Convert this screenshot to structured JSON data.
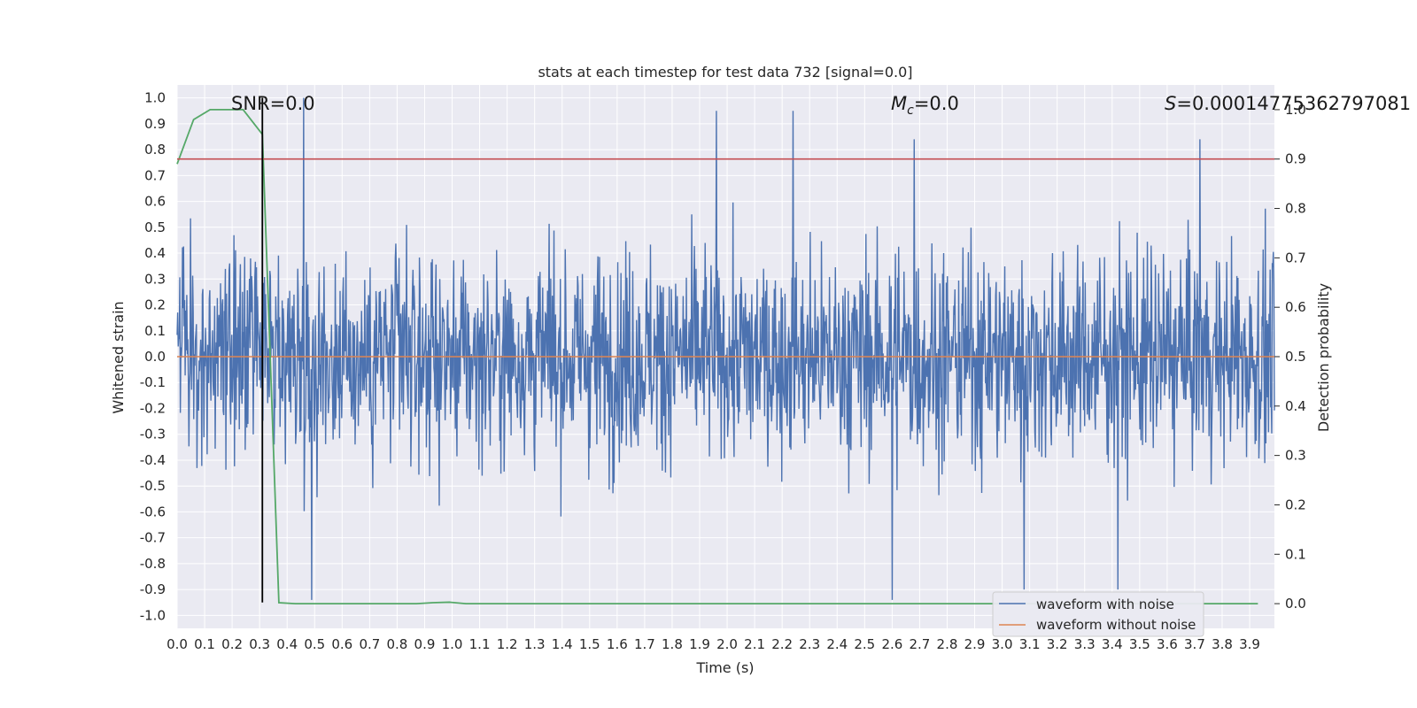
{
  "chart_data": {
    "type": "line",
    "title": "stats at each timestep for test data 732 [signal=0.0]",
    "xlabel": "Time (s)",
    "ylabel": "Whitened strain",
    "y2label": "Detection probability",
    "xlim": [
      0.0,
      3.99
    ],
    "ylim": [
      -1.05,
      1.05
    ],
    "y2lim": [
      -0.05,
      1.05
    ],
    "xticks": [
      "0.0",
      "0.1",
      "0.2",
      "0.3",
      "0.4",
      "0.5",
      "0.6",
      "0.7",
      "0.8",
      "0.9",
      "1.0",
      "1.1",
      "1.2",
      "1.3",
      "1.4",
      "1.5",
      "1.6",
      "1.7",
      "1.8",
      "1.9",
      "2.0",
      "2.1",
      "2.2",
      "2.3",
      "2.4",
      "2.5",
      "2.6",
      "2.7",
      "2.8",
      "2.9",
      "3.0",
      "3.1",
      "3.2",
      "3.3",
      "3.4",
      "3.5",
      "3.6",
      "3.7",
      "3.8",
      "3.9"
    ],
    "yticks": [
      "1.0",
      "0.9",
      "0.8",
      "0.7",
      "0.6",
      "0.5",
      "0.4",
      "0.3",
      "0.2",
      "0.1",
      "0.0",
      "-0.1",
      "-0.2",
      "-0.3",
      "-0.4",
      "-0.5",
      "-0.6",
      "-0.7",
      "-0.8",
      "-0.9",
      "-1.0"
    ],
    "y2ticks": [
      "1.0",
      "0.9",
      "0.8",
      "0.7",
      "0.6",
      "0.5",
      "0.4",
      "0.3",
      "0.2",
      "0.1",
      "0.0"
    ],
    "grid": true,
    "legend_position": "bottom-right",
    "annotations": {
      "snr": "SNR=0.0",
      "mc_symbol": "M",
      "mc_sub": "c",
      "mc_value": "=0.0",
      "s_symbol": "S",
      "s_value": "=0.00014775362797081"
    },
    "threshold_probability": 0.9,
    "marker_time": 0.31,
    "series": [
      {
        "name": "waveform with noise",
        "axis": "left",
        "color": "#4c72b0",
        "x_start": 0.0,
        "x_end": 3.99,
        "samples": 2048,
        "amplitude_envelope": [
          -1.0,
          1.0
        ],
        "mean": 0.0,
        "note_peaks": [
          [
            0.46,
            1.0
          ],
          [
            0.49,
            -0.94
          ],
          [
            1.96,
            0.95
          ],
          [
            2.24,
            0.95
          ],
          [
            2.6,
            -0.94
          ],
          [
            2.68,
            0.84
          ],
          [
            3.72,
            0.84
          ],
          [
            3.08,
            -0.9
          ],
          [
            3.42,
            -0.9
          ]
        ]
      },
      {
        "name": "waveform without noise",
        "axis": "left",
        "color": "#dd8452",
        "x": [
          0.0,
          3.99
        ],
        "y": [
          0.0,
          0.0
        ]
      },
      {
        "name": "detection probability",
        "axis": "right",
        "color": "#55a868",
        "x": [
          0.0,
          0.06,
          0.12,
          0.18,
          0.24,
          0.31,
          0.37,
          0.43,
          0.5,
          0.56,
          0.62,
          0.68,
          0.74,
          0.81,
          0.87,
          0.93,
          0.99,
          1.05,
          1.12,
          1.5,
          2.0,
          2.5,
          3.0,
          3.5,
          3.93
        ],
        "y": [
          0.89,
          0.98,
          1.0,
          1.0,
          1.0,
          0.95,
          0.002,
          0.0,
          0.0,
          0.0,
          0.0,
          0.0,
          0.0,
          0.0,
          0.0,
          0.002,
          0.003,
          0.0,
          0.0,
          0.0,
          0.0,
          0.0,
          0.0,
          0.0,
          0.0
        ]
      }
    ],
    "legend": [
      {
        "label": "waveform with noise",
        "color": "#4c72b0"
      },
      {
        "label": "waveform without noise",
        "color": "#dd8452"
      }
    ],
    "colors": {
      "axes_bg": "#eaeaf2",
      "grid": "#ffffff",
      "threshold": "#c44e52",
      "marker": "#000000"
    }
  }
}
